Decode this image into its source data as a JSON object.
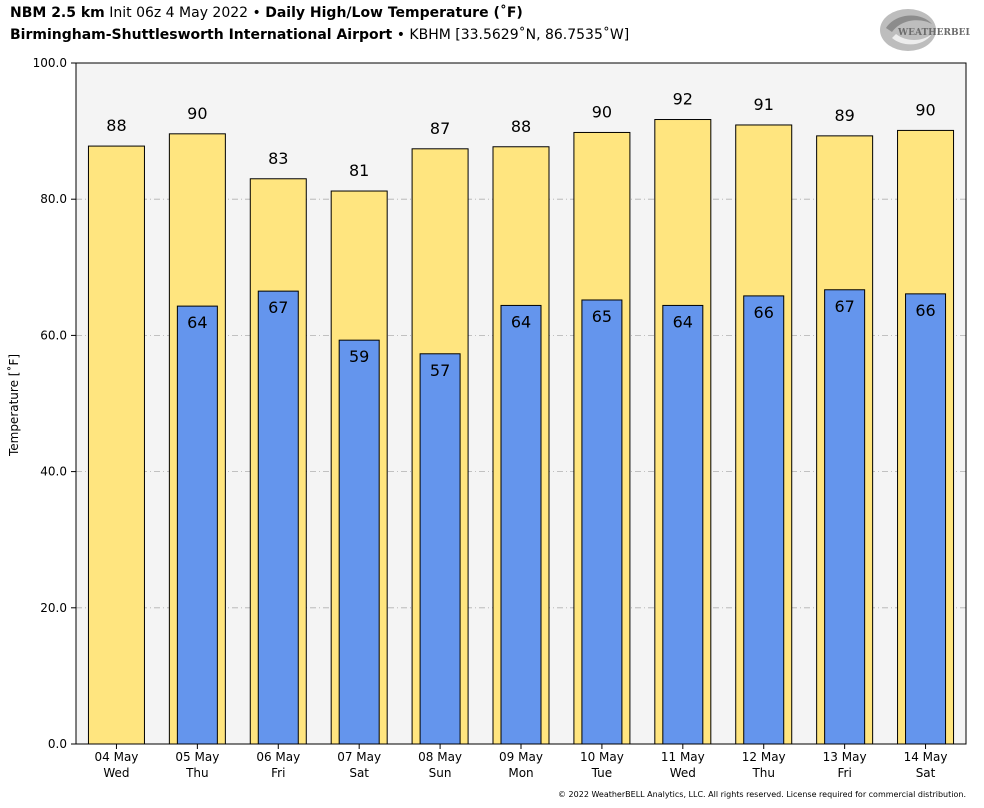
{
  "header": {
    "model": "NBM 2.5 km",
    "init": "Init 06z 4 May 2022",
    "bullet": "•",
    "product": "Daily High/Low Temperature (˚F)",
    "station_name": "Birmingham-Shuttlesworth International Airport",
    "station_info": "KBHM [33.5629˚N, 86.7535˚W]"
  },
  "logo": {
    "text": "WEATHERBELL",
    "icon": "weatherbell-swirl-logo"
  },
  "copyright": "© 2022 WeatherBELL Analytics, LLC. All rights reserved. License required for commercial distribution.",
  "colors": {
    "high_fill": "#ffe57f",
    "low_fill": "#6495ed",
    "plot_bg": "#f4f4f4",
    "grid": "#b0b0b0"
  },
  "chart_data": {
    "type": "bar",
    "ylabel": "Temperature [˚F]",
    "ylim": [
      0,
      100
    ],
    "yticks": [
      "0.0",
      "20.0",
      "40.0",
      "60.0",
      "80.0",
      "100.0"
    ],
    "grid": true,
    "categories": [
      [
        "04 May",
        "Wed"
      ],
      [
        "05 May",
        "Thu"
      ],
      [
        "06 May",
        "Fri"
      ],
      [
        "07 May",
        "Sat"
      ],
      [
        "08 May",
        "Sun"
      ],
      [
        "09 May",
        "Mon"
      ],
      [
        "10 May",
        "Tue"
      ],
      [
        "11 May",
        "Wed"
      ],
      [
        "12 May",
        "Thu"
      ],
      [
        "13 May",
        "Fri"
      ],
      [
        "14 May",
        "Sat"
      ]
    ],
    "series": [
      {
        "values": [
          87.8,
          89.6,
          83.0,
          81.2,
          87.4,
          87.7,
          89.8,
          91.7,
          90.9,
          89.3,
          90.1
        ],
        "labels": [
          "88",
          "90",
          "83",
          "81",
          "87",
          "88",
          "90",
          "92",
          "91",
          "89",
          "90"
        ]
      },
      {
        "values": [
          null,
          64.3,
          66.5,
          59.3,
          57.3,
          64.4,
          65.2,
          64.4,
          65.8,
          66.7,
          66.1
        ],
        "labels": [
          null,
          "64",
          "67",
          "59",
          "57",
          "64",
          "65",
          "64",
          "66",
          "67",
          "66"
        ]
      }
    ]
  }
}
